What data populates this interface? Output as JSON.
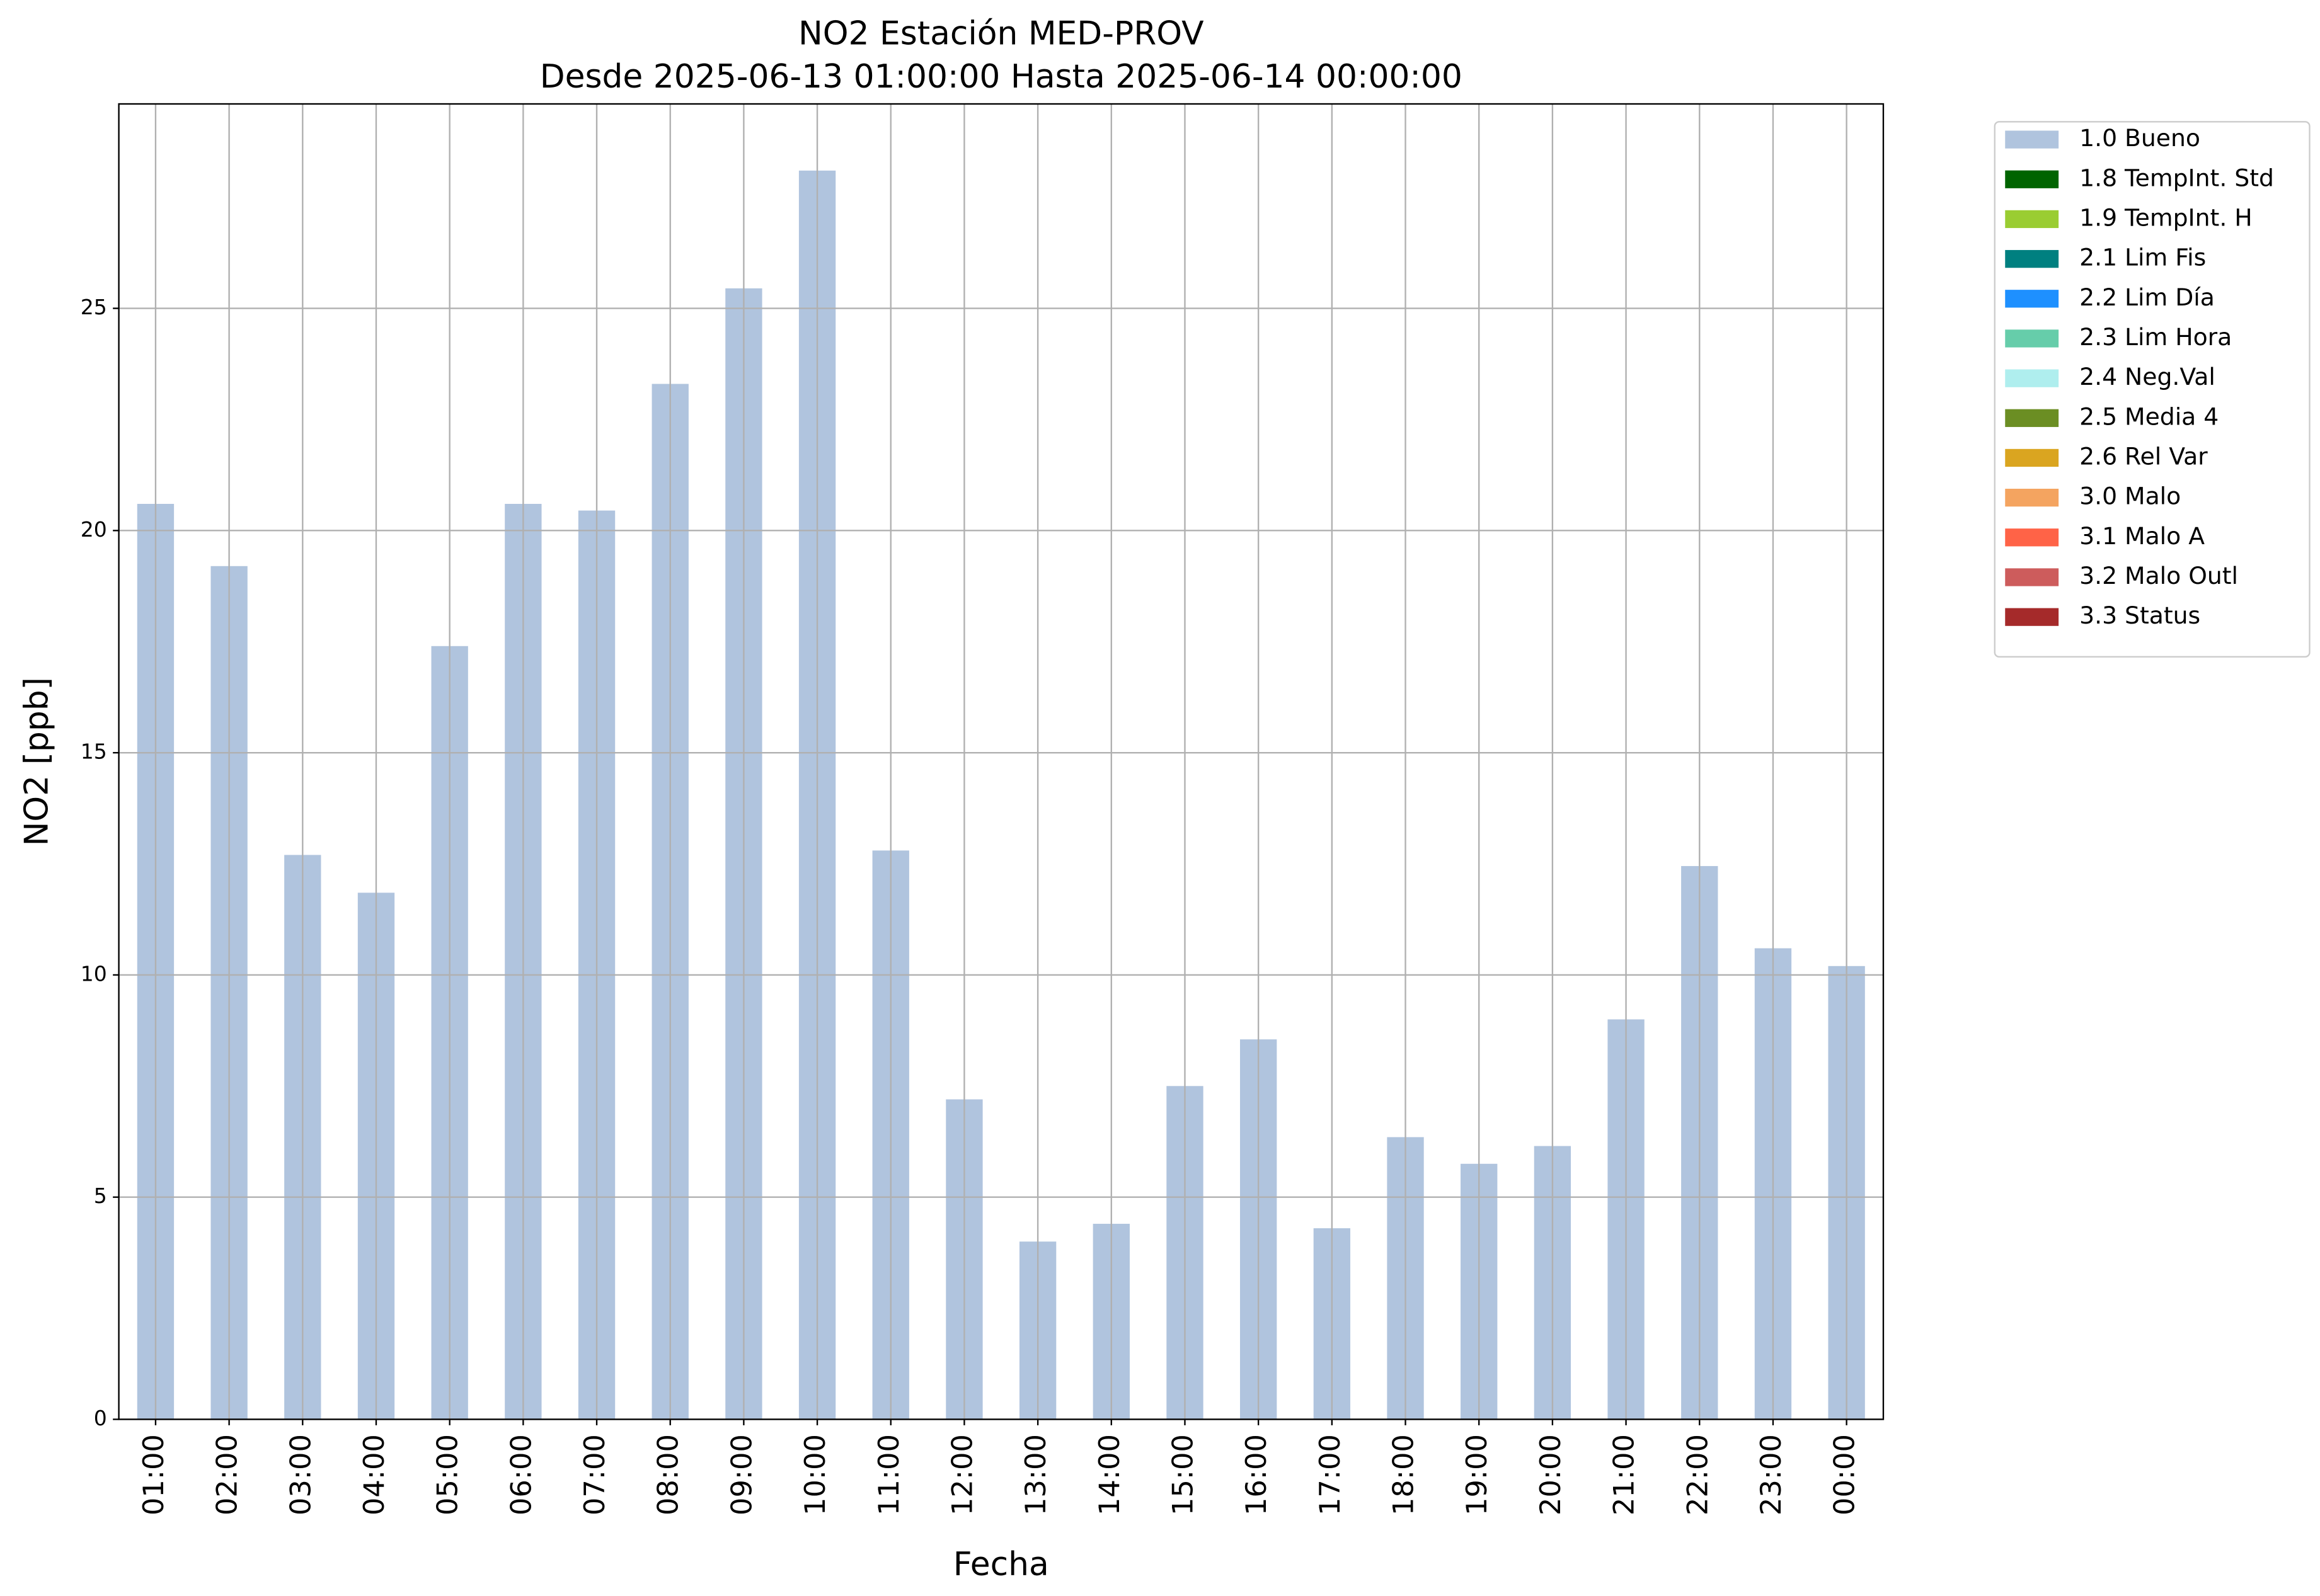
{
  "chart_data": {
    "type": "stacked_bar",
    "title": "NO2 Estación MED-PROV",
    "subtitle": "Desde 2025-06-13 01:00:00 Hasta 2025-06-14 00:00:00",
    "xlabel": "Fecha",
    "ylabel": "NO2 [ppb]",
    "categories": [
      "01:00",
      "02:00",
      "03:00",
      "04:00",
      "05:00",
      "06:00",
      "07:00",
      "08:00",
      "09:00",
      "10:00",
      "11:00",
      "12:00",
      "13:00",
      "14:00",
      "15:00",
      "16:00",
      "17:00",
      "18:00",
      "19:00",
      "20:00",
      "21:00",
      "22:00",
      "23:00",
      "00:00"
    ],
    "series": [
      {
        "name": "1.0 Bueno",
        "color": "#b0c4de",
        "values": [
          20.6,
          19.2,
          12.7,
          11.85,
          17.4,
          20.6,
          20.45,
          23.3,
          25.45,
          28.1,
          12.8,
          7.2,
          4.0,
          4.4,
          7.5,
          8.55,
          4.3,
          6.35,
          5.75,
          6.15,
          9.0,
          12.45,
          10.6,
          10.2
        ]
      },
      {
        "name": "1.8 TempInt. Std",
        "color": "#006400",
        "values": [
          0,
          0,
          0,
          0,
          0,
          0,
          0,
          0,
          0,
          0,
          0,
          0,
          0,
          0,
          0,
          0,
          0,
          0,
          0,
          0,
          0,
          0,
          0,
          0
        ]
      },
      {
        "name": "1.9 TempInt. H",
        "color": "#9acd32",
        "values": [
          0,
          0,
          0,
          0,
          0,
          0,
          0,
          0,
          0,
          0,
          0,
          0,
          0,
          0,
          0,
          0,
          0,
          0,
          0,
          0,
          0,
          0,
          0,
          0
        ]
      },
      {
        "name": "2.1 Lim Fis",
        "color": "#008080",
        "values": [
          0,
          0,
          0,
          0,
          0,
          0,
          0,
          0,
          0,
          0,
          0,
          0,
          0,
          0,
          0,
          0,
          0,
          0,
          0,
          0,
          0,
          0,
          0,
          0
        ]
      },
      {
        "name": "2.2 Lim Día",
        "color": "#1e90ff",
        "values": [
          0,
          0,
          0,
          0,
          0,
          0,
          0,
          0,
          0,
          0,
          0,
          0,
          0,
          0,
          0,
          0,
          0,
          0,
          0,
          0,
          0,
          0,
          0,
          0
        ]
      },
      {
        "name": "2.3 Lim Hora",
        "color": "#66cdaa",
        "values": [
          0,
          0,
          0,
          0,
          0,
          0,
          0,
          0,
          0,
          0,
          0,
          0,
          0,
          0,
          0,
          0,
          0,
          0,
          0,
          0,
          0,
          0,
          0,
          0
        ]
      },
      {
        "name": "2.4 Neg.Val",
        "color": "#afeeee",
        "values": [
          0,
          0,
          0,
          0,
          0,
          0,
          0,
          0,
          0,
          0,
          0,
          0,
          0,
          0,
          0,
          0,
          0,
          0,
          0,
          0,
          0,
          0,
          0,
          0
        ]
      },
      {
        "name": "2.5 Media 4",
        "color": "#6b8e23",
        "values": [
          0,
          0,
          0,
          0,
          0,
          0,
          0,
          0,
          0,
          0,
          0,
          0,
          0,
          0,
          0,
          0,
          0,
          0,
          0,
          0,
          0,
          0,
          0,
          0
        ]
      },
      {
        "name": "2.6 Rel Var",
        "color": "#daa520",
        "values": [
          0,
          0,
          0,
          0,
          0,
          0,
          0,
          0,
          0,
          0,
          0,
          0,
          0,
          0,
          0,
          0,
          0,
          0,
          0,
          0,
          0,
          0,
          0,
          0
        ]
      },
      {
        "name": "3.0 Malo",
        "color": "#f4a460",
        "values": [
          0,
          0,
          0,
          0,
          0,
          0,
          0,
          0,
          0,
          0,
          0,
          0,
          0,
          0,
          0,
          0,
          0,
          0,
          0,
          0,
          0,
          0,
          0,
          0
        ]
      },
      {
        "name": "3.1 Malo A",
        "color": "#ff6347",
        "values": [
          0,
          0,
          0,
          0,
          0,
          0,
          0,
          0,
          0,
          0,
          0,
          0,
          0,
          0,
          0,
          0,
          0,
          0,
          0,
          0,
          0,
          0,
          0,
          0
        ]
      },
      {
        "name": "3.2 Malo Outl",
        "color": "#cd5c5c",
        "values": [
          0,
          0,
          0,
          0,
          0,
          0,
          0,
          0,
          0,
          0,
          0,
          0,
          0,
          0,
          0,
          0,
          0,
          0,
          0,
          0,
          0,
          0,
          0,
          0
        ]
      },
      {
        "name": "3.3 Status",
        "color": "#a52a2a",
        "values": [
          0,
          0,
          0,
          0,
          0,
          0,
          0,
          0,
          0,
          0,
          0,
          0,
          0,
          0,
          0,
          0,
          0,
          0,
          0,
          0,
          0,
          0,
          0,
          0
        ]
      }
    ],
    "ylim": [
      0,
      29.6
    ],
    "yticks": [
      0,
      5,
      10,
      15,
      20,
      25
    ],
    "grid": true,
    "legend": "outside upper right"
  }
}
